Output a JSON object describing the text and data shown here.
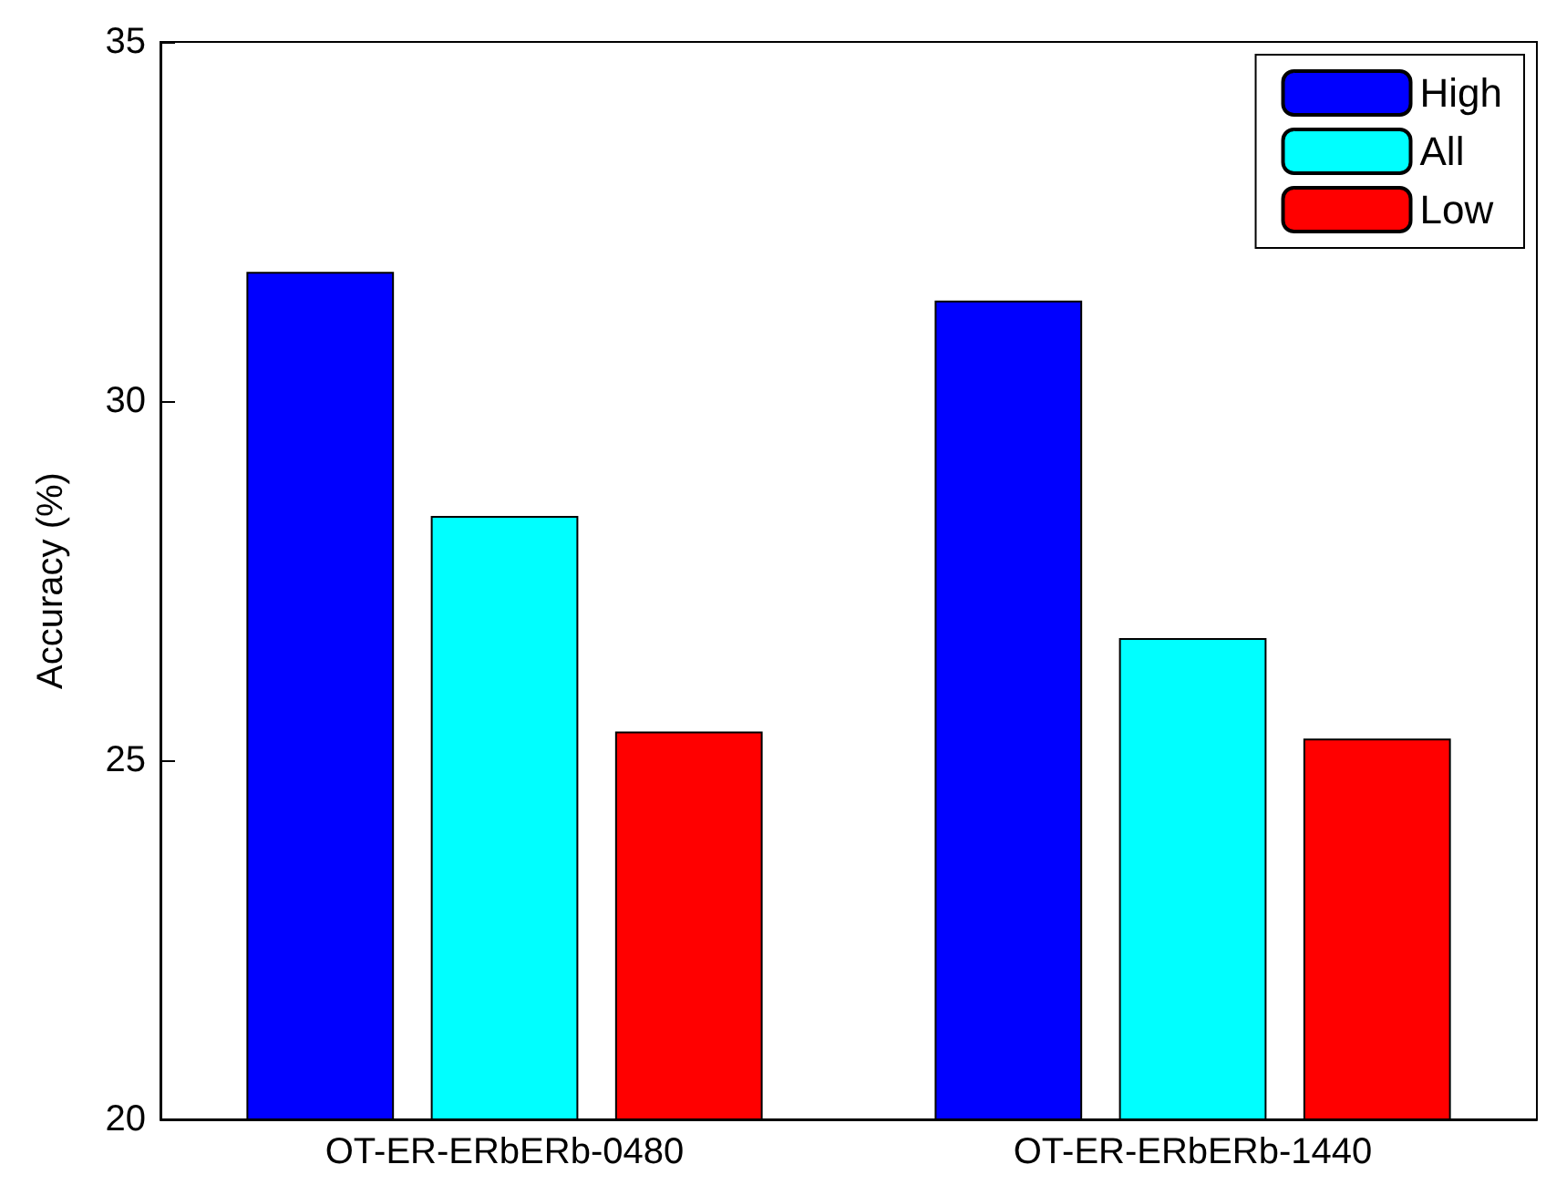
{
  "chart_data": {
    "type": "bar",
    "ylabel": "Accuracy (%)",
    "categories": [
      "OT-ER-ERbERb-0480",
      "OT-ER-ERbERb-1440"
    ],
    "series": [
      {
        "name": "High",
        "color": "#0000ff",
        "values": [
          31.8,
          31.4
        ]
      },
      {
        "name": "All",
        "color": "#00ffff",
        "values": [
          28.4,
          26.7
        ]
      },
      {
        "name": "Low",
        "color": "#ff0000",
        "values": [
          25.4,
          25.3
        ]
      }
    ],
    "ylim": [
      20,
      35
    ],
    "yticks": [
      20,
      25,
      30,
      35
    ],
    "grid": false,
    "legend": "top right"
  }
}
